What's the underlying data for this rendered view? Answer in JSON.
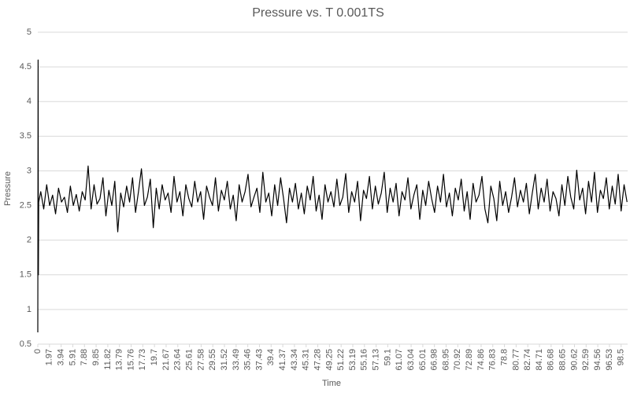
{
  "chart_data": {
    "type": "line",
    "title": "Pressure vs. T 0.001TS",
    "x_label": "Time",
    "y_label": "Pressure",
    "color": "#000000",
    "grid": true,
    "xlim": [
      0,
      99.6
    ],
    "ylim": [
      0.5,
      5
    ],
    "yticks": [
      0.5,
      1,
      1.5,
      2,
      2.5,
      3,
      3.5,
      4,
      4.5,
      5
    ],
    "xticks": [
      0,
      1.97,
      3.94,
      5.91,
      7.88,
      9.85,
      11.82,
      13.79,
      15.76,
      17.73,
      19.7,
      21.67,
      23.64,
      25.61,
      27.58,
      29.55,
      31.52,
      33.49,
      35.46,
      37.43,
      39.4,
      41.37,
      43.34,
      45.31,
      47.28,
      49.25,
      51.22,
      53.19,
      55.16,
      57.13,
      59.1,
      61.07,
      63.04,
      65.01,
      66.98,
      68.95,
      70.92,
      72.89,
      74.86,
      76.83,
      78.8,
      80.77,
      82.74,
      84.71,
      86.68,
      88.65,
      90.62,
      92.59,
      94.56,
      96.53,
      98.5
    ],
    "x": [
      0,
      0.05,
      0.1,
      0.15,
      0.5,
      1,
      1.5,
      2,
      2.5,
      3,
      3.5,
      4,
      4.5,
      5,
      5.5,
      6,
      6.5,
      7,
      7.5,
      8,
      8.5,
      9,
      9.5,
      10,
      10.5,
      11,
      11.5,
      12,
      12.5,
      13,
      13.5,
      14,
      14.5,
      15,
      15.5,
      16,
      16.5,
      17,
      17.5,
      18,
      18.5,
      19,
      19.5,
      20,
      20.5,
      21,
      21.5,
      22,
      22.5,
      23,
      23.5,
      24,
      24.5,
      25,
      25.5,
      26,
      26.5,
      27,
      27.5,
      28,
      28.5,
      29,
      29.5,
      30,
      30.5,
      31,
      31.5,
      32,
      32.5,
      33,
      33.5,
      34,
      34.5,
      35,
      35.5,
      36,
      36.5,
      37,
      37.5,
      38,
      38.5,
      39,
      39.5,
      40,
      40.5,
      41,
      41.5,
      42,
      42.5,
      43,
      43.5,
      44,
      44.5,
      45,
      45.5,
      46,
      46.5,
      47,
      47.5,
      48,
      48.5,
      49,
      49.5,
      50,
      50.5,
      51,
      51.5,
      52,
      52.5,
      53,
      53.5,
      54,
      54.5,
      55,
      55.5,
      56,
      56.5,
      57,
      57.5,
      58,
      58.5,
      59,
      59.5,
      60,
      60.5,
      61,
      61.5,
      62,
      62.5,
      63,
      63.5,
      64,
      64.5,
      65,
      65.5,
      66,
      66.5,
      67,
      67.5,
      68,
      68.5,
      69,
      69.5,
      70,
      70.5,
      71,
      71.5,
      72,
      72.5,
      73,
      73.5,
      74,
      74.5,
      75,
      75.5,
      76,
      76.5,
      77,
      77.5,
      78,
      78.5,
      79,
      79.5,
      80,
      80.5,
      81,
      81.5,
      82,
      82.5,
      83,
      83.5,
      84,
      84.5,
      85,
      85.5,
      86,
      86.5,
      87,
      87.5,
      88,
      88.5,
      89,
      89.5,
      90,
      90.5,
      91,
      91.5,
      92,
      92.5,
      93,
      93.5,
      94,
      94.5,
      95,
      95.5,
      96,
      96.5,
      97,
      97.5,
      98,
      98.5,
      99,
      99.5
    ],
    "values": [
      0.67,
      4.6,
      1.5,
      2.55,
      2.7,
      2.45,
      2.8,
      2.5,
      2.65,
      2.38,
      2.75,
      2.55,
      2.62,
      2.4,
      2.78,
      2.5,
      2.66,
      2.42,
      2.7,
      2.58,
      3.07,
      2.45,
      2.8,
      2.52,
      2.6,
      2.9,
      2.35,
      2.72,
      2.5,
      2.85,
      2.12,
      2.68,
      2.48,
      2.78,
      2.55,
      2.9,
      2.4,
      2.7,
      3.03,
      2.5,
      2.62,
      2.88,
      2.18,
      2.75,
      2.45,
      2.8,
      2.58,
      2.68,
      2.4,
      2.92,
      2.55,
      2.7,
      2.35,
      2.8,
      2.6,
      2.48,
      2.85,
      2.55,
      2.7,
      2.3,
      2.78,
      2.62,
      2.5,
      2.9,
      2.42,
      2.72,
      2.58,
      2.85,
      2.45,
      2.65,
      2.28,
      2.8,
      2.55,
      2.7,
      2.95,
      2.48,
      2.62,
      2.75,
      2.4,
      2.98,
      2.55,
      2.68,
      2.35,
      2.8,
      2.5,
      2.9,
      2.6,
      2.25,
      2.75,
      2.55,
      2.82,
      2.45,
      2.68,
      2.38,
      2.78,
      2.58,
      2.92,
      2.42,
      2.65,
      2.3,
      2.8,
      2.55,
      2.7,
      2.48,
      2.88,
      2.5,
      2.62,
      2.96,
      2.4,
      2.7,
      2.55,
      2.85,
      2.28,
      2.72,
      2.6,
      2.92,
      2.45,
      2.78,
      2.52,
      2.68,
      2.98,
      2.4,
      2.75,
      2.55,
      2.82,
      2.35,
      2.7,
      2.58,
      2.9,
      2.45,
      2.65,
      2.8,
      2.3,
      2.72,
      2.5,
      2.85,
      2.6,
      2.4,
      2.78,
      2.55,
      2.95,
      2.48,
      2.68,
      2.35,
      2.75,
      2.58,
      2.88,
      2.42,
      2.7,
      2.3,
      2.82,
      2.55,
      2.65,
      2.92,
      2.45,
      2.25,
      2.78,
      2.6,
      2.28,
      2.85,
      2.5,
      2.7,
      2.4,
      2.62,
      2.9,
      2.48,
      2.72,
      2.55,
      2.82,
      2.38,
      2.68,
      2.95,
      2.45,
      2.75,
      2.55,
      2.88,
      2.42,
      2.7,
      2.6,
      2.35,
      2.8,
      2.5,
      2.92,
      2.62,
      2.45,
      3.01,
      2.58,
      2.75,
      2.38,
      2.85,
      2.55,
      2.98,
      2.4,
      2.72,
      2.6,
      2.9,
      2.45,
      2.78,
      2.52,
      2.95,
      2.42,
      2.8,
      2.55
    ]
  }
}
